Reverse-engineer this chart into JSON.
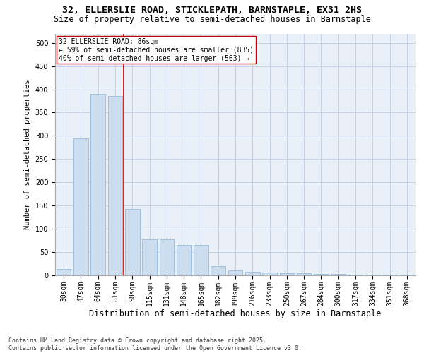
{
  "title_line1": "32, ELLERSLIE ROAD, STICKLEPATH, BARNSTAPLE, EX31 2HS",
  "title_line2": "Size of property relative to semi-detached houses in Barnstaple",
  "xlabel": "Distribution of semi-detached houses by size in Barnstaple",
  "ylabel": "Number of semi-detached properties",
  "categories": [
    "30sqm",
    "47sqm",
    "64sqm",
    "81sqm",
    "98sqm",
    "115sqm",
    "131sqm",
    "148sqm",
    "165sqm",
    "182sqm",
    "199sqm",
    "216sqm",
    "233sqm",
    "250sqm",
    "267sqm",
    "284sqm",
    "300sqm",
    "317sqm",
    "334sqm",
    "351sqm",
    "368sqm"
  ],
  "values": [
    13,
    295,
    390,
    385,
    143,
    78,
    78,
    65,
    65,
    20,
    10,
    8,
    6,
    5,
    5,
    3,
    3,
    2,
    2,
    2,
    1
  ],
  "bar_color": "#ccddf0",
  "bar_edge_color": "#8ab4d8",
  "vline_color": "#cc0000",
  "vline_x_index": 3.5,
  "annotation_text": "32 ELLERSLIE ROAD: 86sqm\n← 59% of semi-detached houses are smaller (835)\n40% of semi-detached houses are larger (563) →",
  "annotation_box_facecolor": "#ffffff",
  "annotation_box_edgecolor": "#cc0000",
  "ylim": [
    0,
    520
  ],
  "yticks": [
    0,
    50,
    100,
    150,
    200,
    250,
    300,
    350,
    400,
    450,
    500
  ],
  "background_color": "#eaf0f8",
  "footer_text": "Contains HM Land Registry data © Crown copyright and database right 2025.\nContains public sector information licensed under the Open Government Licence v3.0.",
  "title_fontsize": 9.5,
  "subtitle_fontsize": 8.5,
  "ylabel_fontsize": 7.5,
  "xlabel_fontsize": 8.5,
  "tick_fontsize": 7,
  "annotation_fontsize": 7,
  "footer_fontsize": 6
}
